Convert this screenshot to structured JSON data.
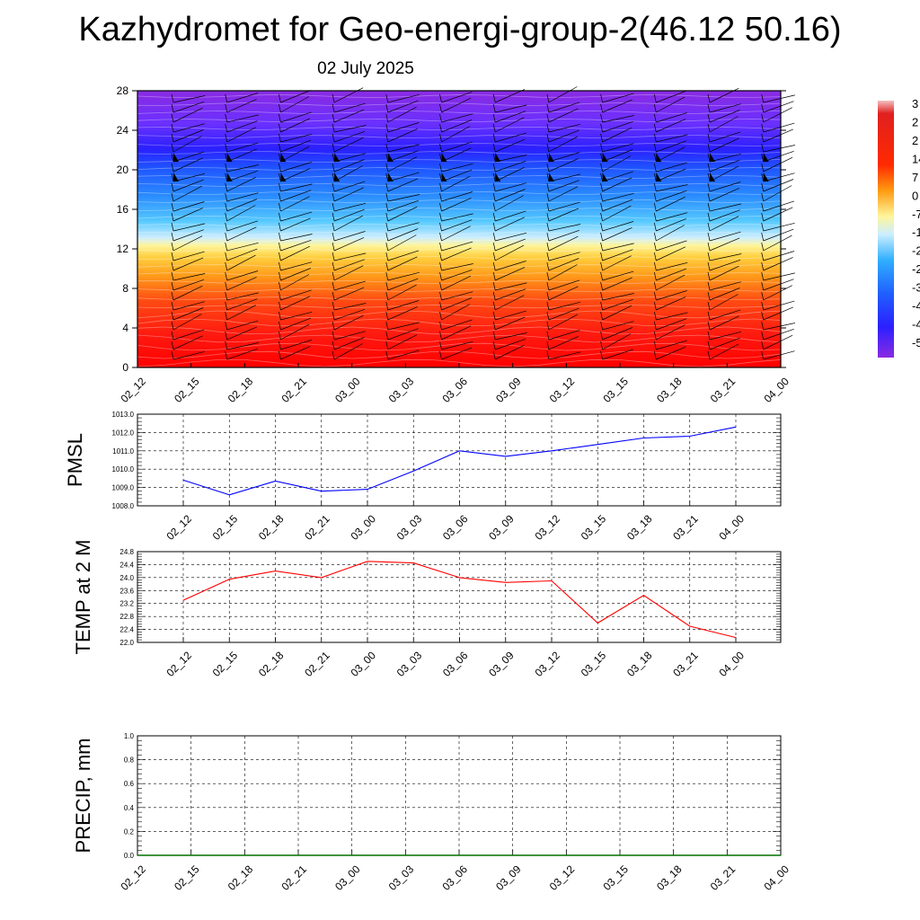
{
  "header": {
    "title": "Kazhydromet for Geo-energi-group-2(46.12 50.16)",
    "subtitle": "02 July 2025"
  },
  "chart_data": [
    {
      "type": "heatmap",
      "title": "",
      "xlabel": "",
      "ylabel": "",
      "x_tick_labels": [
        "02_12",
        "02_15",
        "02_18",
        "02_21",
        "03_00",
        "03_03",
        "03_06",
        "03_09",
        "03_12",
        "03_15",
        "03_18",
        "03_21",
        "04_00"
      ],
      "y_ticks": [
        0,
        4,
        8,
        12,
        16,
        20,
        24,
        28
      ],
      "ylim": [
        0,
        28
      ],
      "colorbar_labels": [
        "3",
        "2",
        "2",
        "14",
        "7",
        "0",
        "-7",
        "-1",
        "-2",
        "-2",
        "-3",
        "-4",
        "-4",
        "-5"
      ],
      "description_of_field": "temperature shading with wind barbs",
      "color_scale": [
        "#8a2be2",
        "#3b30ff",
        "#1f6fff",
        "#1fb8ff",
        "#c8f0ff",
        "#fff59a",
        "#ffc21a",
        "#ff7a10",
        "#ff2a10",
        "#ff0000"
      ]
    },
    {
      "type": "line",
      "ylabel": "PMSL",
      "categories": [
        "02_12",
        "02_15",
        "02_18",
        "02_21",
        "03_00",
        "03_03",
        "03_06",
        "03_09",
        "03_12",
        "03_15",
        "03_18",
        "03_21",
        "04_00"
      ],
      "y_tick_labels": [
        "1008.0",
        "1009.0",
        "1010.0",
        "1011.0",
        "1012.0",
        "1013.0"
      ],
      "ylim": [
        1008.0,
        1013.0
      ],
      "values": [
        1009.4,
        1008.6,
        1009.35,
        1008.8,
        1008.9,
        1009.9,
        1011.0,
        1010.7,
        1011.0,
        1011.35,
        1011.7,
        1011.8,
        1012.3
      ],
      "color": "#0000ff",
      "grid": true
    },
    {
      "type": "line",
      "ylabel": "TEMP at 2 M",
      "categories": [
        "02_12",
        "02_15",
        "02_18",
        "02_21",
        "03_00",
        "03_03",
        "03_06",
        "03_09",
        "03_12",
        "03_15",
        "03_18",
        "03_21",
        "04_00"
      ],
      "y_tick_labels": [
        "22.0",
        "22.4",
        "22.8",
        "23.2",
        "23.6",
        "24.0",
        "24.4",
        "24.8"
      ],
      "ylim": [
        22.0,
        24.8
      ],
      "values": [
        23.3,
        23.95,
        24.2,
        24.0,
        24.5,
        24.45,
        24.0,
        23.85,
        23.9,
        22.6,
        23.45,
        22.5,
        22.15
      ],
      "color": "#ff0000",
      "grid": true
    },
    {
      "type": "line",
      "ylabel": "PRECIP, mm",
      "categories": [
        "02_12",
        "02_15",
        "02_18",
        "02_21",
        "03_00",
        "03_03",
        "03_06",
        "03_09",
        "03_12",
        "03_15",
        "03_18",
        "03_21",
        "04_00"
      ],
      "y_tick_labels": [
        "0.0",
        "0.2",
        "0.4",
        "0.6",
        "0.8",
        "1.0"
      ],
      "ylim": [
        0.0,
        1.0
      ],
      "values": [
        0,
        0,
        0,
        0,
        0,
        0,
        0,
        0,
        0,
        0,
        0,
        0,
        0
      ],
      "color": "#007000",
      "grid": true
    }
  ]
}
